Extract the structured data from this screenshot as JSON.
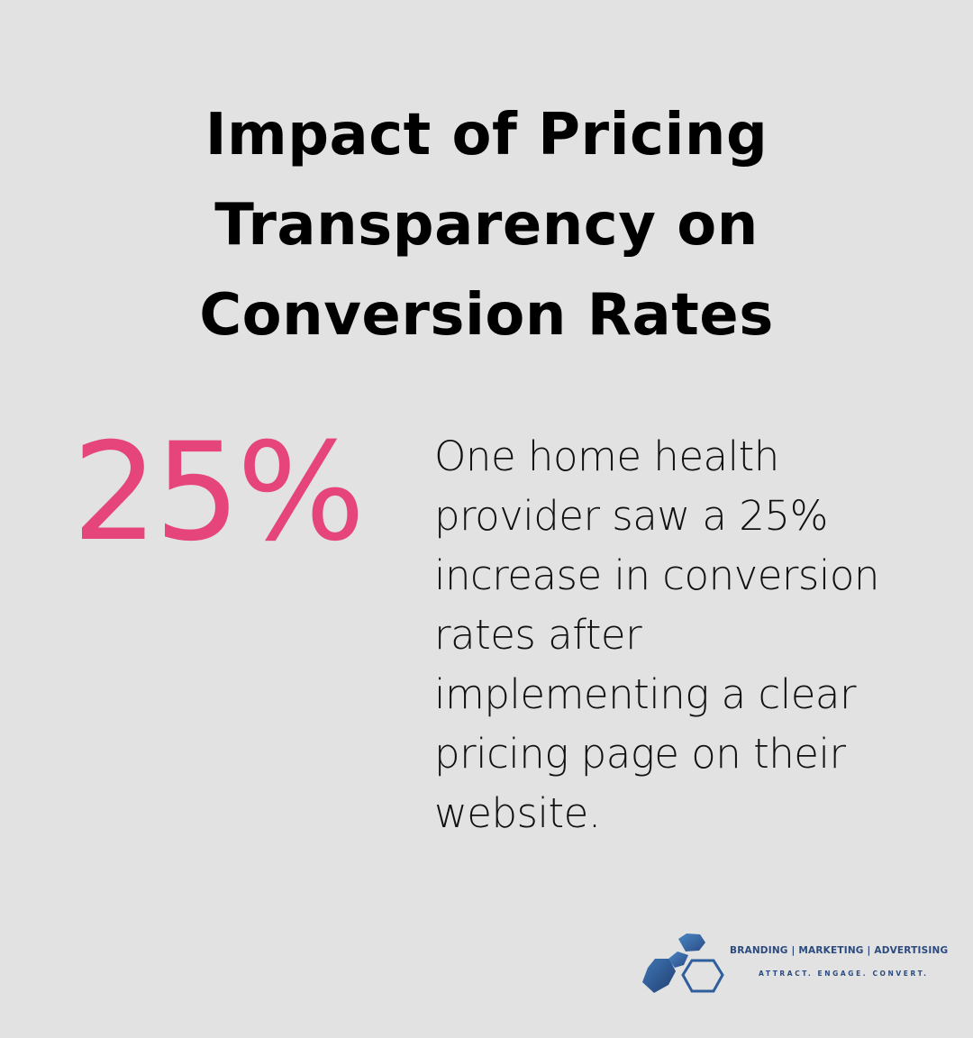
{
  "title": "Impact of Pricing Transparency on Conversion Rates",
  "stat": {
    "value": "25%"
  },
  "description": "One home health provider saw a 25% increase in conversion rates after implementing a clear pricing page on their website.",
  "logo": {
    "icon": "hexagon-cluster-logo-icon",
    "line1": "BRANDING | MARKETING | ADVERTISING",
    "line2": "ATTRACT. ENGAGE. CONVERT."
  },
  "colors": {
    "background": "#e1e2e1",
    "accent": "#e5457a",
    "logo_blue": "#2c4a7e"
  }
}
